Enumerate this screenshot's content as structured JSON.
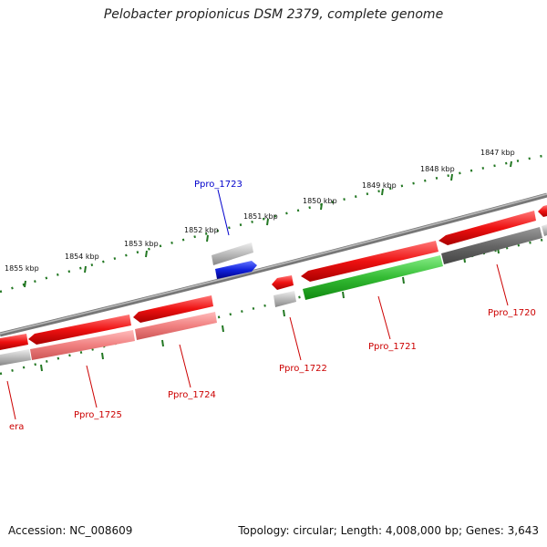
{
  "title": "Pelobacter propionicus DSM 2379, complete genome",
  "footer": {
    "accession": "Accession: NC_008609",
    "summary": "Topology: circular; Length: 4,008,000 bp; Genes: 3,643"
  },
  "tick_labels": [
    "1847 kbp",
    "1848 kbp",
    "1849 kbp",
    "1850 kbp",
    "1851 kbp",
    "1852 kbp",
    "1853 kbp",
    "1854 kbp",
    "1855 kbp"
  ],
  "gene_labels": [
    "Ppro_1723",
    "Ppro_1722",
    "Ppro_1721",
    "Ppro_1720",
    "Ppro_1724",
    "Ppro_1725",
    "era"
  ],
  "colors": {
    "forward_gene": "#ee1111",
    "forward_secondary": "#f08080",
    "highlight_blue": "#1122dd",
    "highlight_green": "#33bb33",
    "gray_gene": "#bbbbbb",
    "dark_gray_gene": "#666666",
    "backbone": "#888888",
    "ticks": "#227722",
    "label_red": "#cc0000",
    "label_blue": "#0000cc"
  }
}
